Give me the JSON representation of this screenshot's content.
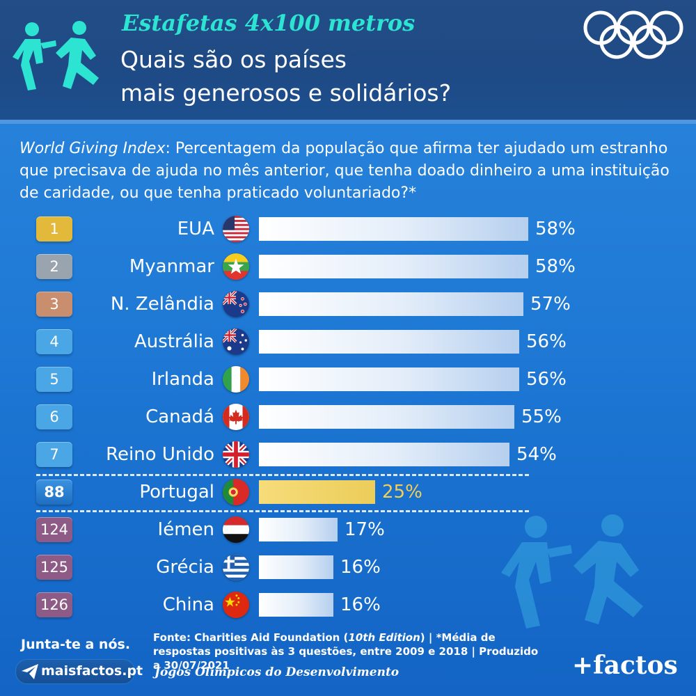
{
  "header": {
    "kicker": "Estafetas 4x100 metros",
    "headline_line1": "Quais são os países",
    "headline_line2": "mais generosos e solidários?"
  },
  "subtitle": {
    "em": "World Giving Index",
    "rest": ": Percentagem da população que afirma ter ajudado um estranho que precisava de ajuda no mês anterior, que tenha doado dinheiro a uma instituição de caridade, ou que tenha praticado voluntariado?*"
  },
  "colors": {
    "gold": "#e3b93c",
    "silver": "#9aa4ae",
    "bronze": "#c98e6e",
    "blue_rank": "#4aa6e4",
    "portugal_rank": "#2b7fd0",
    "low_rank": "#8e5a86",
    "highlight": "#f4cf55"
  },
  "chart_data": {
    "type": "bar",
    "orientation": "horizontal",
    "value_suffix": "%",
    "rows": [
      {
        "rank": "1",
        "country": "EUA",
        "value": 58,
        "flag": "us-flag-icon",
        "rank_style": "gold"
      },
      {
        "rank": "2",
        "country": "Myanmar",
        "value": 58,
        "flag": "myanmar-flag-icon",
        "rank_style": "silver"
      },
      {
        "rank": "3",
        "country": "N. Zelândia",
        "value": 57,
        "flag": "new-zealand-flag-icon",
        "rank_style": "bronze"
      },
      {
        "rank": "4",
        "country": "Austrália",
        "value": 56,
        "flag": "australia-flag-icon",
        "rank_style": "blue_rank"
      },
      {
        "rank": "5",
        "country": "Irlanda",
        "value": 56,
        "flag": "ireland-flag-icon",
        "rank_style": "blue_rank"
      },
      {
        "rank": "6",
        "country": "Canadá",
        "value": 55,
        "flag": "canada-flag-icon",
        "rank_style": "blue_rank"
      },
      {
        "rank": "7",
        "country": "Reino Unido",
        "value": 54,
        "flag": "uk-flag-icon",
        "rank_style": "blue_rank"
      },
      {
        "rank": "88",
        "country": "Portugal",
        "value": 25,
        "flag": "portugal-flag-icon",
        "rank_style": "portugal_rank",
        "highlight": true
      },
      {
        "rank": "124",
        "country": "Iémen",
        "value": 17,
        "flag": "yemen-flag-icon",
        "rank_style": "low_rank"
      },
      {
        "rank": "125",
        "country": "Grécia",
        "value": 16,
        "flag": "greece-flag-icon",
        "rank_style": "low_rank"
      },
      {
        "rank": "126",
        "country": "China",
        "value": 16,
        "flag": "china-flag-icon",
        "rank_style": "low_rank"
      }
    ]
  },
  "footer": {
    "join": "Junta-te a nós.",
    "site": "maisfactos.pt",
    "source_a": "Fonte: Charities Aid Foundation (",
    "source_italic": "10th Edition",
    "source_b": ") | *Média de respostas positivas às 3 questões, entre 2009 e 2018 | Produzido a 30/07/2021",
    "games": "Jogos Olímpicos do Desenvolvimento",
    "brand": "+factos"
  }
}
